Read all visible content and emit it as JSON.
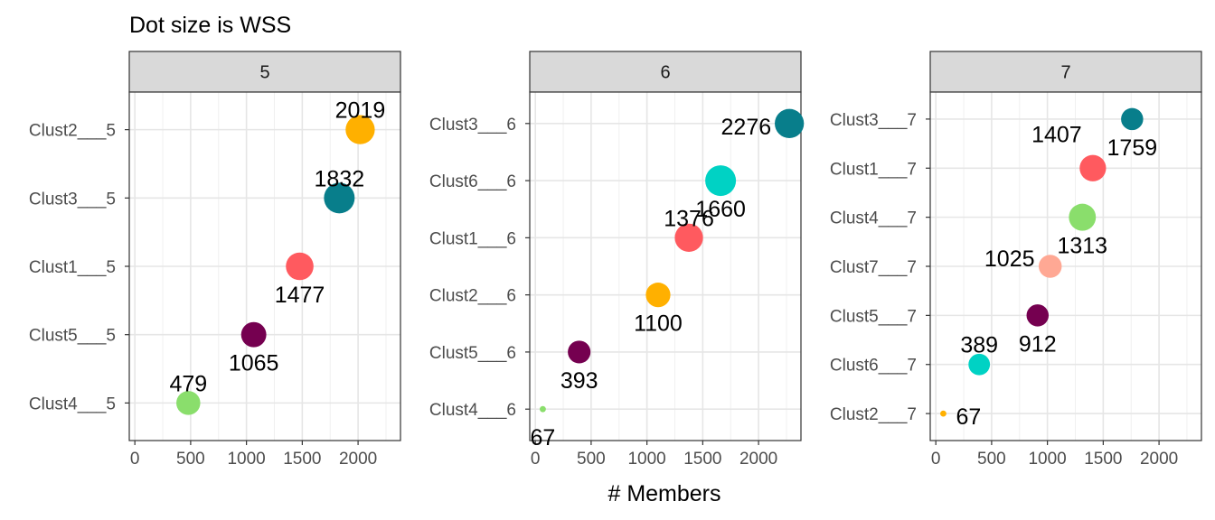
{
  "chart_data": {
    "type": "scatter",
    "title": "Dot size is WSS",
    "xlabel": "# Members",
    "ylabel": "",
    "xlim": [
      -50,
      2380
    ],
    "x_ticks": [
      0,
      500,
      1000,
      1500,
      2000
    ],
    "x_tick_labels": [
      "0",
      "500",
      "1000",
      "1500",
      "2000"
    ],
    "grid": true,
    "legend": "none",
    "size_encodes": "WSS",
    "colors": {
      "Clust1": "#ff5a5f",
      "Clust2": "#ffb000",
      "Clust3": "#087e8b",
      "Clust4": "#8ade6c",
      "Clust5": "#750050",
      "Clust6": "#00d2c4",
      "Clust7": "#ffa894"
    },
    "panels": [
      {
        "strip": "5",
        "categories": [
          "Clust4___5",
          "Clust5___5",
          "Clust1___5",
          "Clust3___5",
          "Clust2___5"
        ],
        "points": [
          {
            "category": "Clust2___5",
            "cluster": "Clust2",
            "members": 2019,
            "label": "2019",
            "label_pos": "above",
            "size_rel": 0.95
          },
          {
            "category": "Clust3___5",
            "cluster": "Clust3",
            "members": 1832,
            "label": "1832",
            "label_pos": "above",
            "size_rel": 1.0
          },
          {
            "category": "Clust1___5",
            "cluster": "Clust1",
            "members": 1477,
            "label": "1477",
            "label_pos": "below",
            "size_rel": 0.9
          },
          {
            "category": "Clust5___5",
            "cluster": "Clust5",
            "members": 1065,
            "label": "1065",
            "label_pos": "below",
            "size_rel": 0.82
          },
          {
            "category": "Clust4___5",
            "cluster": "Clust4",
            "members": 479,
            "label": "479",
            "label_pos": "above",
            "size_rel": 0.78
          }
        ]
      },
      {
        "strip": "6",
        "categories": [
          "Clust4___6",
          "Clust5___6",
          "Clust2___6",
          "Clust1___6",
          "Clust6___6",
          "Clust3___6"
        ],
        "points": [
          {
            "category": "Clust3___6",
            "cluster": "Clust3",
            "members": 2276,
            "label": "2276",
            "label_pos": "left",
            "size_rel": 0.95
          },
          {
            "category": "Clust6___6",
            "cluster": "Clust6",
            "members": 1660,
            "label": "1660",
            "label_pos": "below",
            "size_rel": 1.0
          },
          {
            "category": "Clust1___6",
            "cluster": "Clust1",
            "members": 1376,
            "label": "1376",
            "label_pos": "above",
            "size_rel": 0.92
          },
          {
            "category": "Clust2___6",
            "cluster": "Clust2",
            "members": 1100,
            "label": "1100",
            "label_pos": "below",
            "size_rel": 0.8
          },
          {
            "category": "Clust5___6",
            "cluster": "Clust5",
            "members": 393,
            "label": "393",
            "label_pos": "below",
            "size_rel": 0.74
          },
          {
            "category": "Clust4___6",
            "cluster": "Clust4",
            "members": 67,
            "label": "67",
            "label_pos": "below",
            "size_rel": 0.2
          }
        ]
      },
      {
        "strip": "7",
        "categories": [
          "Clust2___7",
          "Clust6___7",
          "Clust5___7",
          "Clust7___7",
          "Clust4___7",
          "Clust1___7",
          "Clust3___7"
        ],
        "points": [
          {
            "category": "Clust3___7",
            "cluster": "Clust3",
            "members": 1759,
            "label": "1759",
            "label_pos": "below",
            "size_rel": 0.72
          },
          {
            "category": "Clust1___7",
            "cluster": "Clust1",
            "members": 1407,
            "label": "1407",
            "label_pos": "above-left",
            "size_rel": 0.86
          },
          {
            "category": "Clust4___7",
            "cluster": "Clust4",
            "members": 1313,
            "label": "1313",
            "label_pos": "below",
            "size_rel": 0.88
          },
          {
            "category": "Clust7___7",
            "cluster": "Clust7",
            "members": 1025,
            "label": "1025",
            "label_pos": "below-left",
            "size_rel": 0.75
          },
          {
            "category": "Clust5___7",
            "cluster": "Clust5",
            "members": 912,
            "label": "912",
            "label_pos": "below",
            "size_rel": 0.72
          },
          {
            "category": "Clust6___7",
            "cluster": "Clust6",
            "members": 389,
            "label": "389",
            "label_pos": "above",
            "size_rel": 0.7
          },
          {
            "category": "Clust2___7",
            "cluster": "Clust2",
            "members": 67,
            "label": "67",
            "label_pos": "right",
            "size_rel": 0.2
          }
        ]
      }
    ]
  }
}
